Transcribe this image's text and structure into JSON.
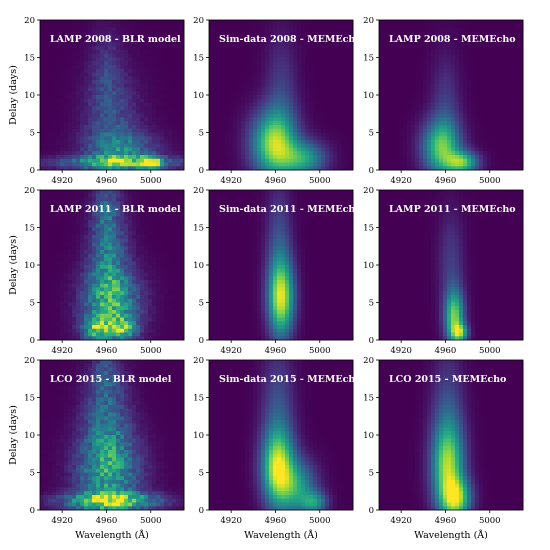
{
  "figure": {
    "ylabel": "Delay (days)",
    "xlabel": "Wavelength (Å)"
  },
  "chart_data": [
    {
      "type": "heatmap",
      "title": "LAMP 2008 - BLR model",
      "row": 0,
      "col": 0,
      "xlim": [
        4900,
        5030
      ],
      "ylim": [
        0,
        20
      ],
      "xticks": [
        4920,
        4960,
        5000
      ],
      "yticks": [
        0,
        5,
        10,
        15,
        20
      ],
      "blobs": [
        {
          "x": 4965,
          "y": 6,
          "sx": 18,
          "sy": 5.0,
          "a": 0.22
        },
        {
          "x": 4960,
          "y": 13,
          "sx": 10,
          "sy": 4.0,
          "a": 0.14
        },
        {
          "x": 4975,
          "y": 2.5,
          "sx": 22,
          "sy": 1.8,
          "a": 0.35
        },
        {
          "x": 4970,
          "y": 1.0,
          "sx": 40,
          "sy": 0.6,
          "a": 0.5
        },
        {
          "x": 5000,
          "y": 0.9,
          "sx": 6,
          "sy": 0.6,
          "a": 0.75
        }
      ],
      "noise": 0.55
    },
    {
      "type": "heatmap",
      "title": "Sim-data 2008 - MEMEcho",
      "row": 0,
      "col": 1,
      "xlim": [
        4900,
        5030
      ],
      "ylim": [
        0,
        20
      ],
      "xticks": [
        4920,
        4960,
        5000
      ],
      "yticks": [
        0,
        5,
        10,
        15,
        20
      ],
      "blobs": [
        {
          "x": 4958,
          "y": 3.5,
          "sx": 14,
          "sy": 3.0,
          "a": 0.8
        },
        {
          "x": 4965,
          "y": 9,
          "sx": 10,
          "sy": 6.0,
          "a": 0.2
        },
        {
          "x": 4985,
          "y": 1.5,
          "sx": 14,
          "sy": 1.6,
          "a": 0.55
        }
      ],
      "noise": 0
    },
    {
      "type": "heatmap",
      "title": "LAMP 2008 - MEMEcho",
      "row": 0,
      "col": 2,
      "xlim": [
        4900,
        5030
      ],
      "ylim": [
        0,
        20
      ],
      "xticks": [
        4920,
        4960,
        5000
      ],
      "yticks": [
        0,
        5,
        10,
        15,
        20
      ],
      "blobs": [
        {
          "x": 4956,
          "y": 3.0,
          "sx": 12,
          "sy": 2.5,
          "a": 0.7
        },
        {
          "x": 4975,
          "y": 1.0,
          "sx": 10,
          "sy": 1.0,
          "a": 0.7
        },
        {
          "x": 4960,
          "y": 8,
          "sx": 9,
          "sy": 5.0,
          "a": 0.18
        }
      ],
      "noise": 0
    },
    {
      "type": "heatmap",
      "title": "LAMP 2011 - BLR model",
      "row": 1,
      "col": 0,
      "xlim": [
        4900,
        5030
      ],
      "ylim": [
        0,
        20
      ],
      "xticks": [
        4920,
        4960,
        5000
      ],
      "yticks": [
        0,
        5,
        10,
        15,
        20
      ],
      "blobs": [
        {
          "x": 4965,
          "y": 4.5,
          "sx": 18,
          "sy": 3.5,
          "a": 0.55
        },
        {
          "x": 4962,
          "y": 11,
          "sx": 12,
          "sy": 5.0,
          "a": 0.35
        },
        {
          "x": 4960,
          "y": 17,
          "sx": 8,
          "sy": 3.0,
          "a": 0.2
        },
        {
          "x": 4950,
          "y": 1.5,
          "sx": 8,
          "sy": 1.0,
          "a": 0.5
        },
        {
          "x": 4975,
          "y": 1.5,
          "sx": 8,
          "sy": 1.0,
          "a": 0.5
        }
      ],
      "noise": 0.6
    },
    {
      "type": "heatmap",
      "title": "Sim-data 2011 - MEMEcho",
      "row": 1,
      "col": 1,
      "xlim": [
        4900,
        5030
      ],
      "ylim": [
        0,
        20
      ],
      "xticks": [
        4920,
        4960,
        5000
      ],
      "yticks": [
        0,
        5,
        10,
        15,
        20
      ],
      "blobs": [
        {
          "x": 4965,
          "y": 5.5,
          "sx": 8,
          "sy": 3.5,
          "a": 0.85
        },
        {
          "x": 4963,
          "y": 12,
          "sx": 8,
          "sy": 6.0,
          "a": 0.25
        }
      ],
      "noise": 0
    },
    {
      "type": "heatmap",
      "title": "LAMP 2011 - MEMEcho",
      "row": 1,
      "col": 2,
      "xlim": [
        4900,
        5030
      ],
      "ylim": [
        0,
        20
      ],
      "xticks": [
        4920,
        4960,
        5000
      ],
      "yticks": [
        0,
        5,
        10,
        15,
        20
      ],
      "blobs": [
        {
          "x": 4968,
          "y": 3.0,
          "sx": 6,
          "sy": 2.5,
          "a": 0.75
        },
        {
          "x": 4973,
          "y": 1.0,
          "sx": 5,
          "sy": 0.8,
          "a": 0.6
        },
        {
          "x": 4965,
          "y": 10,
          "sx": 8,
          "sy": 5.0,
          "a": 0.18
        }
      ],
      "noise": 0
    },
    {
      "type": "heatmap",
      "title": "LCO 2015 - BLR model",
      "row": 2,
      "col": 0,
      "xlim": [
        4900,
        5030
      ],
      "ylim": [
        0,
        20
      ],
      "xticks": [
        4920,
        4960,
        5000
      ],
      "yticks": [
        0,
        5,
        10,
        15,
        20
      ],
      "blobs": [
        {
          "x": 4962,
          "y": 5,
          "sx": 20,
          "sy": 4.0,
          "a": 0.5
        },
        {
          "x": 4960,
          "y": 12,
          "sx": 14,
          "sy": 5.0,
          "a": 0.3
        },
        {
          "x": 4965,
          "y": 1.2,
          "sx": 30,
          "sy": 0.8,
          "a": 0.7
        },
        {
          "x": 4960,
          "y": 18,
          "sx": 8,
          "sy": 2.0,
          "a": 0.18
        }
      ],
      "noise": 0.6
    },
    {
      "type": "heatmap",
      "title": "Sim-data 2015 - MEMEcho",
      "row": 2,
      "col": 1,
      "xlim": [
        4900,
        5030
      ],
      "ylim": [
        0,
        20
      ],
      "xticks": [
        4920,
        4960,
        5000
      ],
      "yticks": [
        0,
        5,
        10,
        15,
        20
      ],
      "blobs": [
        {
          "x": 4962,
          "y": 5.5,
          "sx": 10,
          "sy": 3.5,
          "a": 0.85
        },
        {
          "x": 4980,
          "y": 3.0,
          "sx": 12,
          "sy": 2.5,
          "a": 0.5
        },
        {
          "x": 4995,
          "y": 1.0,
          "sx": 8,
          "sy": 1.0,
          "a": 0.45
        },
        {
          "x": 4962,
          "y": 13,
          "sx": 10,
          "sy": 6.0,
          "a": 0.25
        }
      ],
      "noise": 0
    },
    {
      "type": "heatmap",
      "title": "LCO 2015 - MEMEcho",
      "row": 2,
      "col": 2,
      "xlim": [
        4900,
        5030
      ],
      "ylim": [
        0,
        20
      ],
      "xticks": [
        4920,
        4960,
        5000
      ],
      "yticks": [
        0,
        5,
        10,
        15,
        20
      ],
      "blobs": [
        {
          "x": 4962,
          "y": 5.5,
          "sx": 10,
          "sy": 4.0,
          "a": 0.75
        },
        {
          "x": 4970,
          "y": 1.5,
          "sx": 9,
          "sy": 1.8,
          "a": 0.7
        },
        {
          "x": 4962,
          "y": 12,
          "sx": 10,
          "sy": 6.0,
          "a": 0.25
        }
      ],
      "noise": 0
    }
  ]
}
